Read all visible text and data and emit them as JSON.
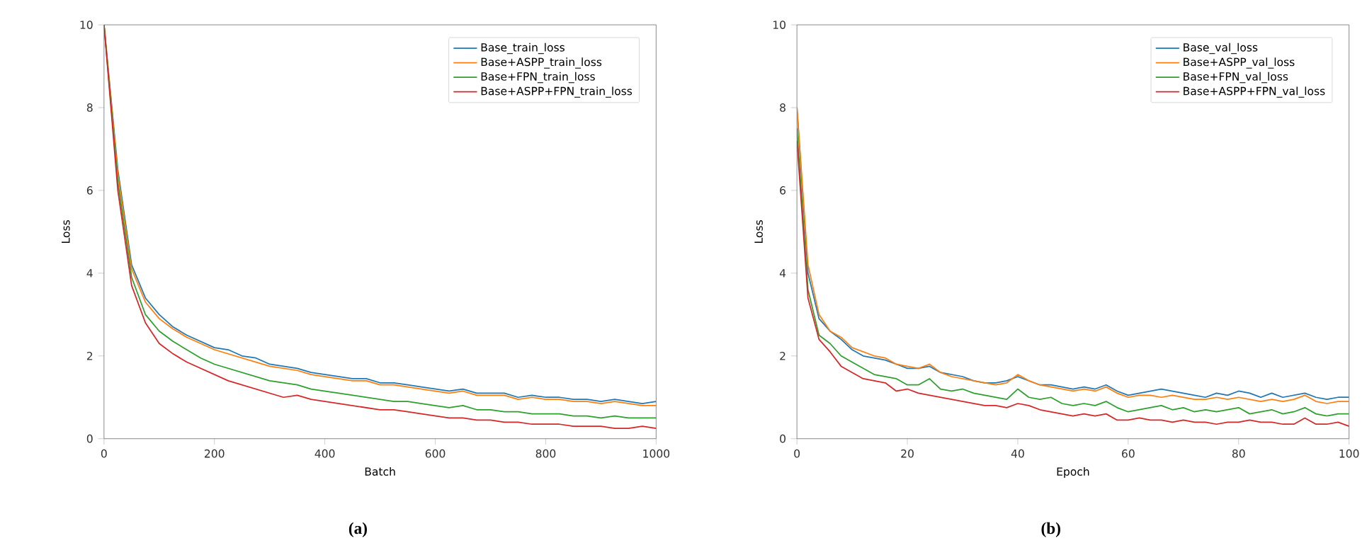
{
  "chart_data": [
    {
      "type": "line",
      "xlabel": "Batch",
      "ylabel": "Loss",
      "annotations": [
        "(a)"
      ],
      "xlim": [
        0,
        1000
      ],
      "ylim": [
        0,
        10
      ],
      "xticks": [
        0,
        200,
        400,
        600,
        800,
        1000
      ],
      "yticks": [
        0,
        2,
        4,
        6,
        8,
        10
      ],
      "legend": "top right",
      "grid": false,
      "x": [
        0,
        25,
        50,
        75,
        100,
        125,
        150,
        175,
        200,
        225,
        250,
        275,
        300,
        325,
        350,
        375,
        400,
        425,
        450,
        475,
        500,
        525,
        550,
        575,
        600,
        625,
        650,
        675,
        700,
        725,
        750,
        775,
        800,
        825,
        850,
        875,
        900,
        925,
        950,
        975,
        1000
      ],
      "series": [
        {
          "name": "Base_train_loss",
          "color": "#1f77b4",
          "values": [
            10,
            6.5,
            4.2,
            3.4,
            3.0,
            2.7,
            2.5,
            2.35,
            2.2,
            2.15,
            2.0,
            1.95,
            1.8,
            1.75,
            1.7,
            1.6,
            1.55,
            1.5,
            1.45,
            1.45,
            1.35,
            1.35,
            1.3,
            1.25,
            1.2,
            1.15,
            1.2,
            1.1,
            1.1,
            1.1,
            1.0,
            1.05,
            1.0,
            1.0,
            0.95,
            0.95,
            0.9,
            0.95,
            0.9,
            0.85,
            0.9
          ]
        },
        {
          "name": "Base+ASPP_train_loss",
          "color": "#ff7f0e",
          "values": [
            10,
            6.4,
            4.1,
            3.3,
            2.9,
            2.65,
            2.45,
            2.3,
            2.15,
            2.05,
            1.95,
            1.85,
            1.75,
            1.7,
            1.65,
            1.55,
            1.5,
            1.45,
            1.4,
            1.4,
            1.3,
            1.3,
            1.25,
            1.2,
            1.15,
            1.1,
            1.15,
            1.05,
            1.05,
            1.05,
            0.95,
            1.0,
            0.95,
            0.95,
            0.9,
            0.9,
            0.85,
            0.9,
            0.85,
            0.8,
            0.8
          ]
        },
        {
          "name": "Base+FPN_train_loss",
          "color": "#2ca02c",
          "values": [
            10,
            6.2,
            3.9,
            3.0,
            2.6,
            2.35,
            2.15,
            1.95,
            1.8,
            1.7,
            1.6,
            1.5,
            1.4,
            1.35,
            1.3,
            1.2,
            1.15,
            1.1,
            1.05,
            1.0,
            0.95,
            0.9,
            0.9,
            0.85,
            0.8,
            0.75,
            0.8,
            0.7,
            0.7,
            0.65,
            0.65,
            0.6,
            0.6,
            0.6,
            0.55,
            0.55,
            0.5,
            0.55,
            0.5,
            0.5,
            0.5
          ]
        },
        {
          "name": "Base+ASPP+FPN_train_loss",
          "color": "#d62728",
          "values": [
            10,
            6.0,
            3.7,
            2.8,
            2.3,
            2.05,
            1.85,
            1.7,
            1.55,
            1.4,
            1.3,
            1.2,
            1.1,
            1.0,
            1.05,
            0.95,
            0.9,
            0.85,
            0.8,
            0.75,
            0.7,
            0.7,
            0.65,
            0.6,
            0.55,
            0.5,
            0.5,
            0.45,
            0.45,
            0.4,
            0.4,
            0.35,
            0.35,
            0.35,
            0.3,
            0.3,
            0.3,
            0.25,
            0.25,
            0.3,
            0.25
          ]
        }
      ]
    },
    {
      "type": "line",
      "xlabel": "Epoch",
      "ylabel": "Loss",
      "annotations": [
        "(b)"
      ],
      "xlim": [
        0,
        100
      ],
      "ylim": [
        0,
        10
      ],
      "xticks": [
        0,
        20,
        40,
        60,
        80,
        100
      ],
      "yticks": [
        0,
        2,
        4,
        6,
        8,
        10
      ],
      "legend": "top right",
      "grid": false,
      "x": [
        0,
        2,
        4,
        6,
        8,
        10,
        12,
        14,
        16,
        18,
        20,
        22,
        24,
        26,
        28,
        30,
        32,
        34,
        36,
        38,
        40,
        42,
        44,
        46,
        48,
        50,
        52,
        54,
        56,
        58,
        60,
        62,
        64,
        66,
        68,
        70,
        72,
        74,
        76,
        78,
        80,
        82,
        84,
        86,
        88,
        90,
        92,
        94,
        96,
        98,
        100
      ],
      "series": [
        {
          "name": "Base_val_loss",
          "color": "#1f77b4",
          "values": [
            8,
            4.0,
            2.9,
            2.6,
            2.4,
            2.15,
            2.0,
            1.95,
            1.9,
            1.8,
            1.7,
            1.7,
            1.75,
            1.6,
            1.55,
            1.5,
            1.4,
            1.35,
            1.35,
            1.4,
            1.5,
            1.4,
            1.3,
            1.3,
            1.25,
            1.2,
            1.25,
            1.2,
            1.3,
            1.15,
            1.05,
            1.1,
            1.15,
            1.2,
            1.15,
            1.1,
            1.05,
            1.0,
            1.1,
            1.05,
            1.15,
            1.1,
            1.0,
            1.1,
            1.0,
            1.05,
            1.1,
            1.0,
            0.95,
            1.0,
            1.0
          ]
        },
        {
          "name": "Base+ASPP_val_loss",
          "color": "#ff7f0e",
          "values": [
            8,
            4.2,
            3.0,
            2.6,
            2.45,
            2.2,
            2.1,
            2.0,
            1.95,
            1.8,
            1.75,
            1.7,
            1.8,
            1.6,
            1.5,
            1.45,
            1.4,
            1.35,
            1.3,
            1.35,
            1.55,
            1.4,
            1.3,
            1.25,
            1.2,
            1.15,
            1.2,
            1.15,
            1.25,
            1.1,
            1.0,
            1.05,
            1.05,
            1.0,
            1.05,
            1.0,
            0.95,
            0.95,
            1.0,
            0.95,
            1.0,
            0.95,
            0.9,
            0.95,
            0.9,
            0.95,
            1.05,
            0.9,
            0.85,
            0.9,
            0.9
          ]
        },
        {
          "name": "Base+FPN_val_loss",
          "color": "#2ca02c",
          "values": [
            7.5,
            3.6,
            2.5,
            2.3,
            2.0,
            1.85,
            1.7,
            1.55,
            1.5,
            1.45,
            1.3,
            1.3,
            1.45,
            1.2,
            1.15,
            1.2,
            1.1,
            1.05,
            1.0,
            0.95,
            1.2,
            1.0,
            0.95,
            1.0,
            0.85,
            0.8,
            0.85,
            0.8,
            0.9,
            0.75,
            0.65,
            0.7,
            0.75,
            0.8,
            0.7,
            0.75,
            0.65,
            0.7,
            0.65,
            0.7,
            0.75,
            0.6,
            0.65,
            0.7,
            0.6,
            0.65,
            0.75,
            0.6,
            0.55,
            0.6,
            0.6
          ]
        },
        {
          "name": "Base+ASPP+FPN_val_loss",
          "color": "#d62728",
          "values": [
            7.2,
            3.4,
            2.4,
            2.1,
            1.75,
            1.6,
            1.45,
            1.4,
            1.35,
            1.15,
            1.2,
            1.1,
            1.05,
            1.0,
            0.95,
            0.9,
            0.85,
            0.8,
            0.8,
            0.75,
            0.85,
            0.8,
            0.7,
            0.65,
            0.6,
            0.55,
            0.6,
            0.55,
            0.6,
            0.45,
            0.45,
            0.5,
            0.45,
            0.45,
            0.4,
            0.45,
            0.4,
            0.4,
            0.35,
            0.4,
            0.4,
            0.45,
            0.4,
            0.4,
            0.35,
            0.35,
            0.5,
            0.35,
            0.35,
            0.4,
            0.3
          ]
        }
      ]
    }
  ]
}
